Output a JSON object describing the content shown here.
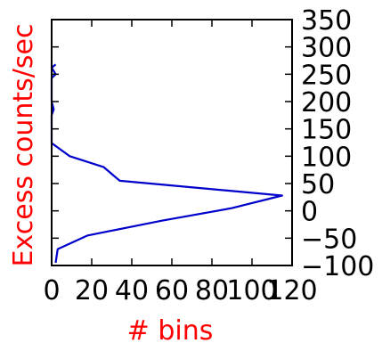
{
  "chart_data": {
    "type": "line",
    "orientation": "horizontal-histogram",
    "title": "",
    "xlabel": "# bins",
    "ylabel": "Excess counts/sec",
    "xlabel_color": "#ff0000",
    "ylabel_color": "#ff0000",
    "series_color": "#0000cc",
    "xlim": [
      0,
      120
    ],
    "ylim": [
      -100,
      350
    ],
    "x_ticks": [
      0,
      20,
      40,
      60,
      80,
      100,
      120
    ],
    "x_tick_labels": [
      "0",
      "20",
      "40",
      "60",
      "80",
      "100",
      "120"
    ],
    "y_ticks": [
      -100,
      -50,
      0,
      50,
      100,
      150,
      200,
      250,
      300,
      350
    ],
    "y_tick_labels": [
      "−100",
      "−50",
      "0",
      "50",
      "100",
      "150",
      "200",
      "250",
      "300",
      "350"
    ],
    "y_axis_side": "right",
    "grid": false,
    "series": [
      {
        "points": [
          {
            "count": 2,
            "y": 268
          },
          {
            "count": 0,
            "y": 262
          },
          {
            "count": 2,
            "y": 250
          },
          {
            "count": 0,
            "y": 243
          },
          {
            "count": 0,
            "y": 200
          },
          {
            "count": 1,
            "y": 186
          },
          {
            "count": 0,
            "y": 175
          },
          {
            "count": 0,
            "y": 124
          },
          {
            "count": 9,
            "y": 100
          },
          {
            "count": 26,
            "y": 80
          },
          {
            "count": 34,
            "y": 55
          },
          {
            "count": 115,
            "y": 28
          },
          {
            "count": 90,
            "y": 5
          },
          {
            "count": 55,
            "y": -18
          },
          {
            "count": 18,
            "y": -45
          },
          {
            "count": 3,
            "y": -70
          },
          {
            "count": 2,
            "y": -95
          }
        ]
      }
    ]
  }
}
